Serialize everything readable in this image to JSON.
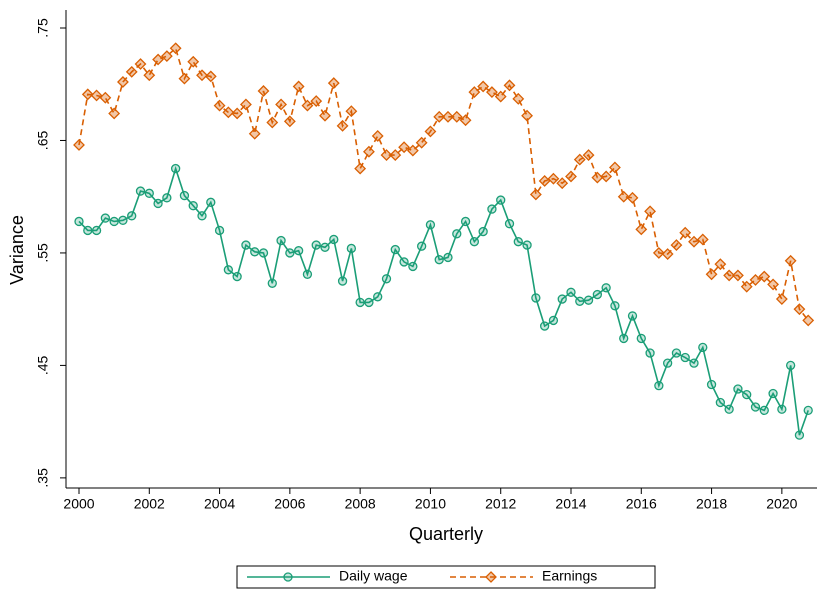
{
  "chart_data": {
    "type": "line",
    "x_label": "Quarterly",
    "y_label": "Variance",
    "x": [
      2000,
      2000.25,
      2000.5,
      2000.75,
      2001,
      2001.25,
      2001.5,
      2001.75,
      2002,
      2002.25,
      2002.5,
      2002.75,
      2003,
      2003.25,
      2003.5,
      2003.75,
      2004,
      2004.25,
      2004.5,
      2004.75,
      2005,
      2005.25,
      2005.5,
      2005.75,
      2006,
      2006.25,
      2006.5,
      2006.75,
      2007,
      2007.25,
      2007.5,
      2007.75,
      2008,
      2008.25,
      2008.5,
      2008.75,
      2009,
      2009.25,
      2009.5,
      2009.75,
      2010,
      2010.25,
      2010.5,
      2010.75,
      2011,
      2011.25,
      2011.5,
      2011.75,
      2012,
      2012.25,
      2012.5,
      2012.75,
      2013,
      2013.25,
      2013.5,
      2013.75,
      2014,
      2014.25,
      2014.5,
      2014.75,
      2015,
      2015.25,
      2015.5,
      2015.75,
      2016,
      2016.25,
      2016.5,
      2016.75,
      2017,
      2017.25,
      2017.5,
      2017.75,
      2018,
      2018.25,
      2018.5,
      2018.75,
      2019,
      2019.25,
      2019.5,
      2019.75,
      2020,
      2020.25,
      2020.5,
      2020.75
    ],
    "series": [
      {
        "name": "Daily wage",
        "color": "#1b9e77",
        "marker": "circle",
        "dashed": false,
        "values": [
          0.578,
          0.57,
          0.57,
          0.581,
          0.578,
          0.579,
          0.583,
          0.605,
          0.603,
          0.594,
          0.599,
          0.625,
          0.601,
          0.592,
          0.583,
          0.595,
          0.57,
          0.535,
          0.529,
          0.557,
          0.551,
          0.55,
          0.523,
          0.561,
          0.55,
          0.552,
          0.531,
          0.557,
          0.555,
          0.562,
          0.525,
          0.554,
          0.506,
          0.506,
          0.511,
          0.527,
          0.553,
          0.542,
          0.538,
          0.556,
          0.575,
          0.544,
          0.546,
          0.567,
          0.578,
          0.56,
          0.569,
          0.589,
          0.597,
          0.576,
          0.56,
          0.557,
          0.51,
          0.485,
          0.49,
          0.509,
          0.515,
          0.507,
          0.508,
          0.513,
          0.519,
          0.503,
          0.474,
          0.494,
          0.474,
          0.461,
          0.432,
          0.452,
          0.461,
          0.457,
          0.452,
          0.466,
          0.433,
          0.417,
          0.411,
          0.429,
          0.424,
          0.413,
          0.41,
          0.425,
          0.411,
          0.45,
          0.388,
          0.41
        ]
      },
      {
        "name": "Earnings",
        "color": "#d95f02",
        "marker": "diamond",
        "dashed": true,
        "values": [
          0.646,
          0.691,
          0.69,
          0.688,
          0.674,
          0.702,
          0.711,
          0.718,
          0.708,
          0.722,
          0.725,
          0.732,
          0.705,
          0.72,
          0.708,
          0.707,
          0.681,
          0.675,
          0.674,
          0.682,
          0.656,
          0.694,
          0.666,
          0.682,
          0.667,
          0.698,
          0.681,
          0.685,
          0.672,
          0.701,
          0.663,
          0.676,
          0.625,
          0.64,
          0.654,
          0.637,
          0.637,
          0.644,
          0.641,
          0.648,
          0.658,
          0.671,
          0.671,
          0.671,
          0.668,
          0.693,
          0.698,
          0.693,
          0.689,
          0.699,
          0.687,
          0.672,
          0.602,
          0.614,
          0.616,
          0.612,
          0.618,
          0.633,
          0.637,
          0.617,
          0.618,
          0.626,
          0.6,
          0.599,
          0.571,
          0.587,
          0.55,
          0.549,
          0.557,
          0.568,
          0.56,
          0.562,
          0.531,
          0.54,
          0.53,
          0.53,
          0.52,
          0.526,
          0.529,
          0.522,
          0.509,
          0.543,
          0.5,
          0.49
        ]
      }
    ],
    "xlim": [
      1999.63,
      2021.0
    ],
    "ylim": [
      0.341,
      0.766
    ],
    "xticks": [
      2000,
      2002,
      2004,
      2006,
      2008,
      2010,
      2012,
      2014,
      2016,
      2018,
      2020
    ],
    "yticks": [
      {
        "value": 0.35,
        "label": ".35"
      },
      {
        "value": 0.45,
        "label": ".45"
      },
      {
        "value": 0.55,
        "label": ".55"
      },
      {
        "value": 0.65,
        "label": ".65"
      },
      {
        "value": 0.75,
        "label": ".75"
      }
    ],
    "legend": "bottom"
  }
}
